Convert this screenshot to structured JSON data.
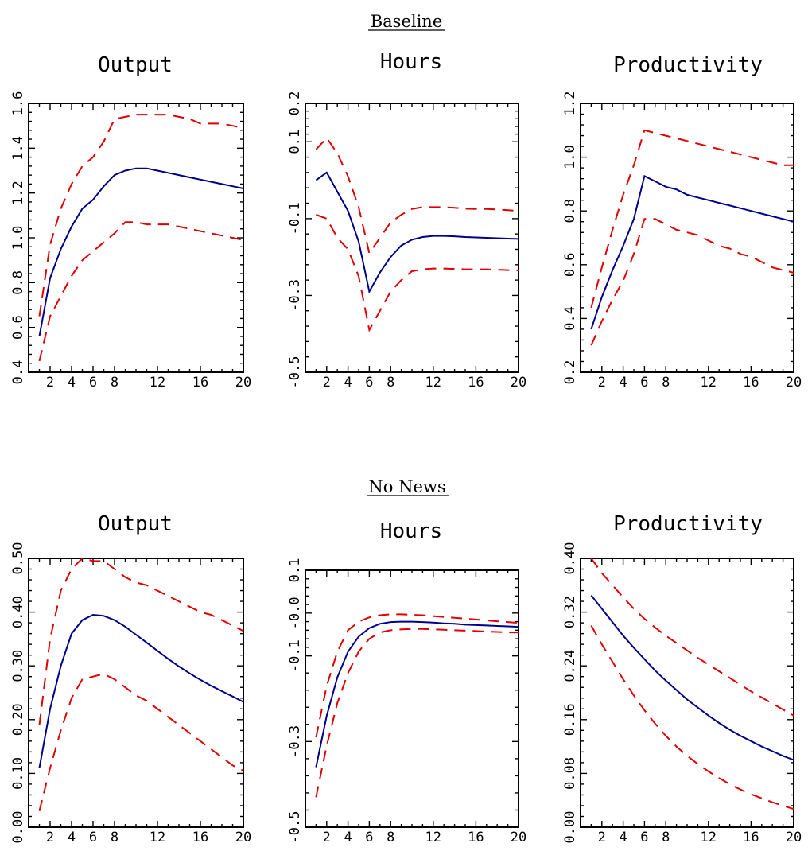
{
  "sections": [
    {
      "title": "Baseline"
    },
    {
      "title": "No News"
    }
  ],
  "colors": {
    "median": "#00008b",
    "bands": "#e00000"
  },
  "chart_data": [
    {
      "type": "line",
      "section": "Baseline",
      "title": "Output",
      "x": [
        1,
        2,
        3,
        4,
        5,
        6,
        7,
        8,
        9,
        10,
        11,
        12,
        13,
        14,
        15,
        16,
        17,
        18,
        19,
        20
      ],
      "xticks": [
        "2",
        "4",
        "6",
        "8",
        "12",
        "16",
        "20"
      ],
      "xtick_values": [
        2,
        4,
        6,
        8,
        12,
        16,
        20
      ],
      "xlim": [
        0,
        20
      ],
      "ylim": [
        0.4,
        1.6
      ],
      "yticks": [
        "0.4",
        "0.6",
        "0.8",
        "1.0",
        "1.2",
        "1.4",
        "1.6"
      ],
      "ytick_values": [
        0.4,
        0.6,
        0.8,
        1.0,
        1.2,
        1.4,
        1.6
      ],
      "grid": false,
      "series": [
        {
          "role": "median",
          "values": [
            0.56,
            0.82,
            0.95,
            1.05,
            1.13,
            1.17,
            1.23,
            1.28,
            1.3,
            1.31,
            1.31,
            1.3,
            1.29,
            1.28,
            1.27,
            1.26,
            1.25,
            1.24,
            1.23,
            1.22
          ]
        },
        {
          "role": "upper",
          "values": [
            0.65,
            0.97,
            1.13,
            1.24,
            1.32,
            1.36,
            1.43,
            1.53,
            1.54,
            1.55,
            1.55,
            1.55,
            1.55,
            1.54,
            1.53,
            1.51,
            1.51,
            1.51,
            1.5,
            1.49
          ]
        },
        {
          "role": "lower",
          "values": [
            0.45,
            0.65,
            0.74,
            0.83,
            0.9,
            0.94,
            0.98,
            1.02,
            1.07,
            1.07,
            1.06,
            1.06,
            1.06,
            1.05,
            1.04,
            1.03,
            1.02,
            1.01,
            1.0,
            0.99
          ]
        }
      ]
    },
    {
      "type": "line",
      "section": "Baseline",
      "title": "Hours",
      "x": [
        1,
        2,
        3,
        4,
        5,
        6,
        7,
        8,
        9,
        10,
        11,
        12,
        13,
        14,
        15,
        16,
        17,
        18,
        19,
        20
      ],
      "xticks": [
        "2",
        "4",
        "6",
        "8",
        "12",
        "16",
        "20"
      ],
      "xtick_values": [
        2,
        4,
        6,
        8,
        12,
        16,
        20
      ],
      "xlim": [
        0,
        20
      ],
      "ylim": [
        -0.5,
        0.2
      ],
      "yticks": [
        "-0.5",
        "-0.3",
        "-0.1",
        "0.1",
        "0.2"
      ],
      "ytick_values": [
        -0.5,
        -0.3,
        -0.1,
        0.1,
        0.2
      ],
      "grid": false,
      "series": [
        {
          "role": "median",
          "values": [
            0.0,
            0.02,
            -0.03,
            -0.08,
            -0.16,
            -0.29,
            -0.24,
            -0.2,
            -0.17,
            -0.155,
            -0.148,
            -0.145,
            -0.145,
            -0.146,
            -0.148,
            -0.149,
            -0.15,
            -0.151,
            -0.152,
            -0.153
          ]
        },
        {
          "role": "upper",
          "values": [
            0.08,
            0.11,
            0.07,
            0.01,
            -0.07,
            -0.19,
            -0.15,
            -0.11,
            -0.09,
            -0.075,
            -0.07,
            -0.07,
            -0.07,
            -0.072,
            -0.074,
            -0.075,
            -0.075,
            -0.076,
            -0.078,
            -0.08
          ]
        },
        {
          "role": "lower",
          "values": [
            -0.09,
            -0.1,
            -0.15,
            -0.18,
            -0.25,
            -0.39,
            -0.34,
            -0.29,
            -0.26,
            -0.237,
            -0.232,
            -0.23,
            -0.23,
            -0.231,
            -0.232,
            -0.232,
            -0.232,
            -0.233,
            -0.234,
            -0.235
          ]
        }
      ]
    },
    {
      "type": "line",
      "section": "Baseline",
      "title": "Productivity",
      "x": [
        1,
        2,
        3,
        4,
        5,
        6,
        7,
        8,
        9,
        10,
        11,
        12,
        13,
        14,
        15,
        16,
        17,
        18,
        19,
        20
      ],
      "xticks": [
        "2",
        "4",
        "6",
        "8",
        "12",
        "16",
        "20"
      ],
      "xtick_values": [
        2,
        4,
        6,
        8,
        12,
        16,
        20
      ],
      "xlim": [
        0,
        20
      ],
      "ylim": [
        0.2,
        1.2
      ],
      "yticks": [
        "0.2",
        "0.4",
        "0.6",
        "0.8",
        "1.0",
        "1.2"
      ],
      "ytick_values": [
        0.2,
        0.4,
        0.6,
        0.8,
        1.0,
        1.2
      ],
      "grid": false,
      "series": [
        {
          "role": "median",
          "values": [
            0.36,
            0.48,
            0.58,
            0.67,
            0.77,
            0.93,
            0.91,
            0.89,
            0.88,
            0.86,
            0.85,
            0.84,
            0.83,
            0.82,
            0.81,
            0.8,
            0.79,
            0.78,
            0.77,
            0.76
          ]
        },
        {
          "role": "upper",
          "values": [
            0.44,
            0.59,
            0.73,
            0.86,
            0.97,
            1.1,
            1.09,
            1.08,
            1.07,
            1.06,
            1.05,
            1.04,
            1.03,
            1.02,
            1.01,
            1.0,
            0.99,
            0.98,
            0.97,
            0.97
          ]
        },
        {
          "role": "lower",
          "values": [
            0.3,
            0.39,
            0.47,
            0.54,
            0.64,
            0.77,
            0.77,
            0.75,
            0.73,
            0.72,
            0.71,
            0.69,
            0.67,
            0.66,
            0.64,
            0.63,
            0.61,
            0.59,
            0.58,
            0.57
          ]
        }
      ]
    },
    {
      "type": "line",
      "section": "No News",
      "title": "Output",
      "x": [
        1,
        2,
        3,
        4,
        5,
        6,
        7,
        8,
        9,
        10,
        11,
        12,
        13,
        14,
        15,
        16,
        17,
        18,
        19,
        20
      ],
      "xticks": [
        "2",
        "4",
        "6",
        "8",
        "12",
        "16",
        "20"
      ],
      "xtick_values": [
        2,
        4,
        6,
        8,
        12,
        16,
        20
      ],
      "xlim": [
        0,
        20
      ],
      "ylim": [
        0.0,
        0.5
      ],
      "yticks": [
        "0.00",
        "0.10",
        "0.20",
        "0.30",
        "0.40",
        "0.50"
      ],
      "ytick_values": [
        0.0,
        0.1,
        0.2,
        0.3,
        0.4,
        0.5
      ],
      "grid": false,
      "series": [
        {
          "role": "median",
          "values": [
            0.11,
            0.22,
            0.3,
            0.36,
            0.385,
            0.395,
            0.393,
            0.385,
            0.373,
            0.358,
            0.343,
            0.328,
            0.313,
            0.299,
            0.286,
            0.274,
            0.263,
            0.253,
            0.243,
            0.233
          ]
        },
        {
          "role": "upper",
          "values": [
            0.19,
            0.35,
            0.44,
            0.48,
            0.5,
            0.495,
            0.495,
            0.48,
            0.465,
            0.455,
            0.45,
            0.44,
            0.43,
            0.42,
            0.41,
            0.4,
            0.395,
            0.385,
            0.375,
            0.365
          ]
        },
        {
          "role": "lower",
          "values": [
            0.03,
            0.11,
            0.18,
            0.24,
            0.275,
            0.28,
            0.285,
            0.275,
            0.26,
            0.245,
            0.235,
            0.22,
            0.205,
            0.19,
            0.175,
            0.16,
            0.145,
            0.13,
            0.115,
            0.105
          ]
        }
      ]
    },
    {
      "type": "line",
      "section": "No News",
      "title": "Hours",
      "x": [
        1,
        2,
        3,
        4,
        5,
        6,
        7,
        8,
        9,
        10,
        11,
        12,
        13,
        14,
        15,
        16,
        17,
        18,
        19,
        20
      ],
      "xticks": [
        "2",
        "4",
        "6",
        "8",
        "12",
        "16",
        "20"
      ],
      "xtick_values": [
        2,
        4,
        6,
        8,
        12,
        16,
        20
      ],
      "xlim": [
        0,
        20
      ],
      "ylim": [
        -0.5,
        0.1
      ],
      "yticks": [
        "-0.5",
        "-0.3",
        "-0.1",
        "-0.0",
        "0.1"
      ],
      "ytick_values": [
        -0.5,
        -0.3,
        -0.1,
        0.0,
        0.1
      ],
      "grid": false,
      "series": [
        {
          "role": "median",
          "values": [
            -0.36,
            -0.24,
            -0.15,
            -0.09,
            -0.055,
            -0.035,
            -0.025,
            -0.021,
            -0.02,
            -0.02,
            -0.021,
            -0.022,
            -0.024,
            -0.025,
            -0.027,
            -0.028,
            -0.029,
            -0.03,
            -0.031,
            -0.032
          ]
        },
        {
          "role": "upper",
          "values": [
            -0.29,
            -0.17,
            -0.09,
            -0.04,
            -0.02,
            -0.01,
            -0.005,
            -0.003,
            -0.003,
            -0.004,
            -0.005,
            -0.007,
            -0.009,
            -0.011,
            -0.013,
            -0.015,
            -0.017,
            -0.019,
            -0.021,
            -0.023
          ]
        },
        {
          "role": "lower",
          "values": [
            -0.43,
            -0.31,
            -0.21,
            -0.14,
            -0.09,
            -0.06,
            -0.045,
            -0.04,
            -0.038,
            -0.037,
            -0.037,
            -0.038,
            -0.039,
            -0.04,
            -0.041,
            -0.042,
            -0.043,
            -0.044,
            -0.045,
            -0.045
          ]
        }
      ]
    },
    {
      "type": "line",
      "section": "No News",
      "title": "Productivity",
      "x": [
        1,
        2,
        3,
        4,
        5,
        6,
        7,
        8,
        9,
        10,
        11,
        12,
        13,
        14,
        15,
        16,
        17,
        18,
        19,
        20
      ],
      "xticks": [
        "2",
        "4",
        "6",
        "8",
        "12",
        "16",
        "20"
      ],
      "xtick_values": [
        2,
        4,
        6,
        8,
        12,
        16,
        20
      ],
      "xlim": [
        0,
        20
      ],
      "ylim": [
        0.0,
        0.4
      ],
      "yticks": [
        "0.00",
        "0.08",
        "0.16",
        "0.24",
        "0.32",
        "0.40"
      ],
      "ytick_values": [
        0.0,
        0.08,
        0.16,
        0.24,
        0.32,
        0.4
      ],
      "grid": false,
      "series": [
        {
          "role": "median",
          "values": [
            0.345,
            0.325,
            0.305,
            0.285,
            0.267,
            0.25,
            0.233,
            0.218,
            0.204,
            0.19,
            0.178,
            0.166,
            0.155,
            0.145,
            0.136,
            0.128,
            0.12,
            0.113,
            0.106,
            0.1
          ]
        },
        {
          "role": "upper",
          "values": [
            0.4,
            0.378,
            0.36,
            0.342,
            0.325,
            0.31,
            0.297,
            0.285,
            0.274,
            0.263,
            0.252,
            0.242,
            0.232,
            0.222,
            0.212,
            0.202,
            0.193,
            0.184,
            0.175,
            0.166
          ]
        },
        {
          "role": "lower",
          "values": [
            0.3,
            0.272,
            0.246,
            0.22,
            0.196,
            0.174,
            0.154,
            0.136,
            0.12,
            0.106,
            0.094,
            0.083,
            0.073,
            0.064,
            0.056,
            0.049,
            0.043,
            0.037,
            0.032,
            0.027
          ]
        }
      ]
    }
  ]
}
